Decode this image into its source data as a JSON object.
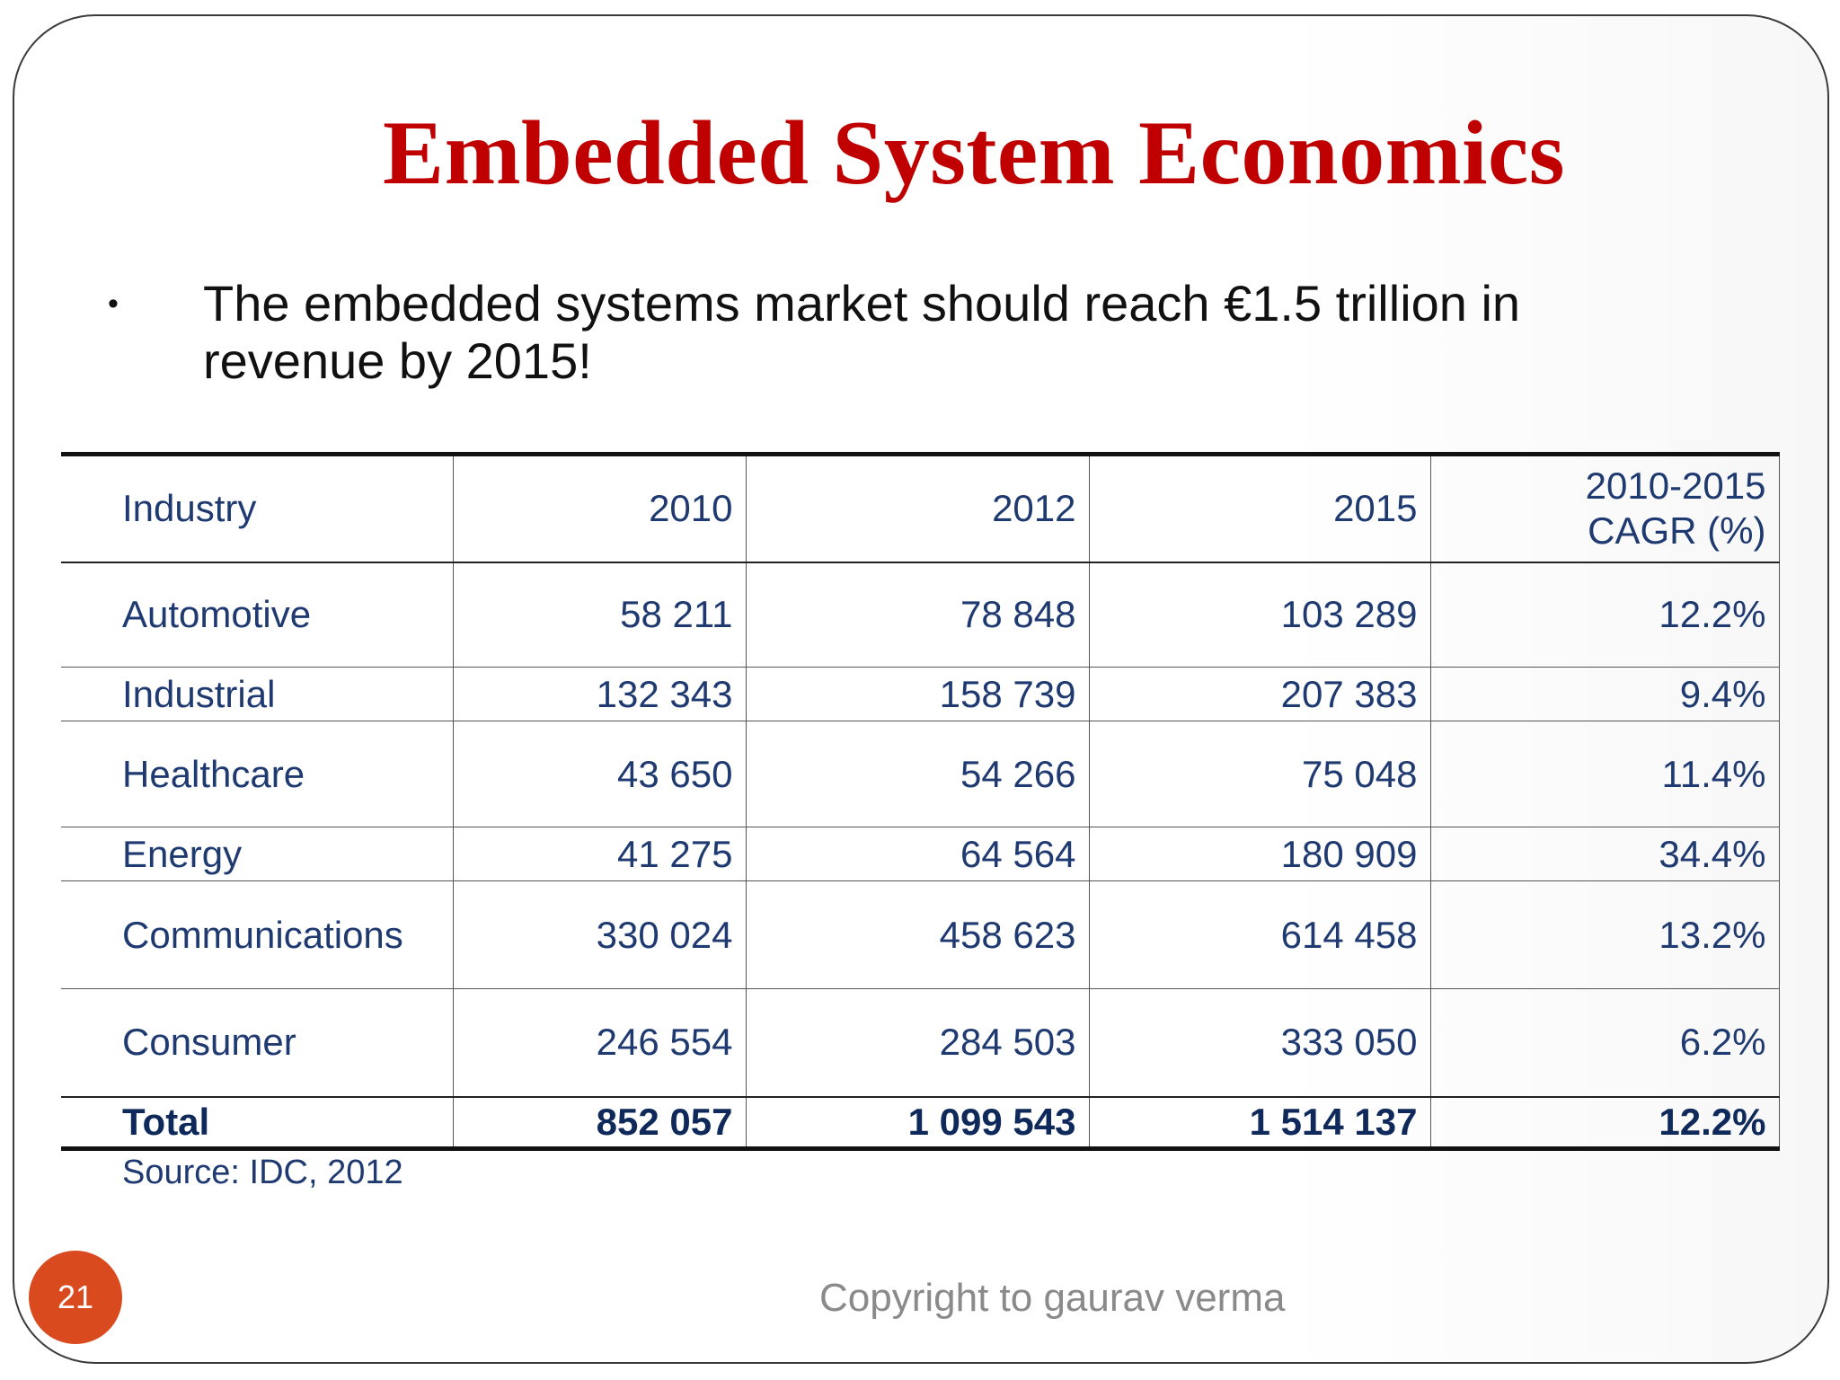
{
  "slide": {
    "title": "Embedded System Economics",
    "bullet": "The embedded systems market should reach €1.5 trillion in revenue by 2015!",
    "page_number": "21",
    "copyright": "Copyright to gaurav verma"
  },
  "table": {
    "headers": [
      "Industry",
      "2010",
      "2012",
      "2015",
      "2010-2015",
      "CAGR (%)"
    ],
    "rows": [
      [
        "Automotive",
        "58 211",
        "78 848",
        "103 289",
        "12.2%"
      ],
      [
        "Industrial",
        "132 343",
        "158 739",
        "207 383",
        "9.4%"
      ],
      [
        "Healthcare",
        "43 650",
        "54 266",
        "75 048",
        "11.4%"
      ],
      [
        "Energy",
        "41 275",
        "64 564",
        "180 909",
        "34.4%"
      ],
      [
        "Communications",
        "330 024",
        "458 623",
        "614 458",
        "13.2%"
      ],
      [
        "Consumer",
        "246 554",
        "284 503",
        "333 050",
        "6.2%"
      ]
    ],
    "total": [
      "Total",
      "852 057",
      "1 099 543",
      "1 514 137",
      "12.2%"
    ],
    "source": "Source: IDC, 2012"
  },
  "colors": {
    "title": "#c00000",
    "table_text": "#1f3a70",
    "badge": "#d94a1f",
    "copyright": "#8a8a8a"
  }
}
